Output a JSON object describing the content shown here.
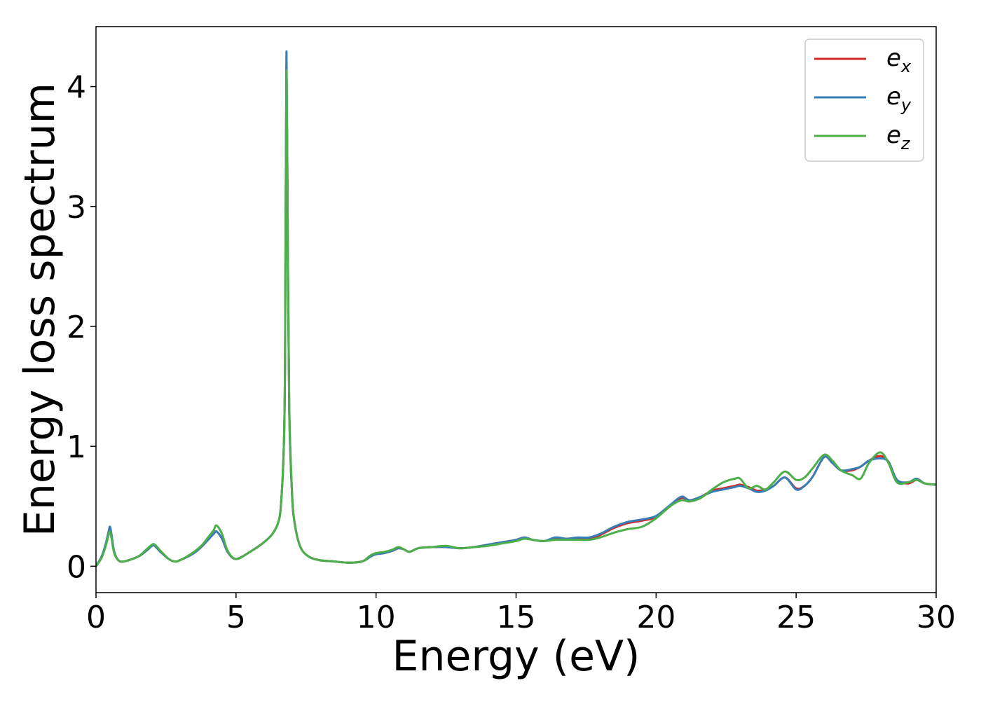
{
  "chart_data": {
    "type": "line",
    "title": "",
    "xlabel": "Energy (eV)",
    "ylabel": "Energy loss spectrum",
    "xlim": [
      0,
      30
    ],
    "ylim": [
      -0.22,
      4.5
    ],
    "xticks": [
      0,
      5,
      10,
      15,
      20,
      25,
      30
    ],
    "xtick_labels": [
      "0",
      "5",
      "10",
      "15",
      "20",
      "25",
      "30"
    ],
    "yticks": [
      0,
      1,
      2,
      3,
      4
    ],
    "ytick_labels": [
      "0",
      "1",
      "2",
      "3",
      "4"
    ],
    "grid": false,
    "legend_position": "top-right",
    "colors": {
      "ex": "#d62728",
      "ey": "#377eb8",
      "ez": "#4daf4a",
      "axes": "#000000"
    },
    "series": [
      {
        "name": "e_x",
        "legend_base": "e",
        "legend_sub": "x",
        "color": "#d62728",
        "x": [
          0,
          0.2,
          0.35,
          0.45,
          0.5,
          0.55,
          0.65,
          0.8,
          1.0,
          1.5,
          1.8,
          2.0,
          2.1,
          2.3,
          2.6,
          2.8,
          3.0,
          3.5,
          3.8,
          4.0,
          4.2,
          4.3,
          4.5,
          4.7,
          5.0,
          5.5,
          6.0,
          6.3,
          6.5,
          6.6,
          6.7,
          6.75,
          6.8,
          6.85,
          6.9,
          7.0,
          7.1,
          7.3,
          7.6,
          8.0,
          8.5,
          9.0,
          9.5,
          9.8,
          10.0,
          10.3,
          10.6,
          10.8,
          11.0,
          11.2,
          11.5,
          12.0,
          12.5,
          13.0,
          13.5,
          14.0,
          14.5,
          15.0,
          15.3,
          15.6,
          16.0,
          16.4,
          16.8,
          17.2,
          17.6,
          18.0,
          18.5,
          19.0,
          19.5,
          20.0,
          20.5,
          20.9,
          21.2,
          21.6,
          22.0,
          22.4,
          22.8,
          23.0,
          23.3,
          23.6,
          23.9,
          24.2,
          24.6,
          25.0,
          25.3,
          25.6,
          26.0,
          26.3,
          26.6,
          27.0,
          27.3,
          27.6,
          28.0,
          28.3,
          28.6,
          29.0,
          29.3,
          29.6,
          30.0
        ],
        "y": [
          0.0,
          0.08,
          0.18,
          0.28,
          0.31,
          0.26,
          0.12,
          0.05,
          0.04,
          0.08,
          0.13,
          0.17,
          0.17,
          0.12,
          0.06,
          0.04,
          0.05,
          0.11,
          0.17,
          0.22,
          0.27,
          0.29,
          0.23,
          0.12,
          0.06,
          0.12,
          0.2,
          0.27,
          0.36,
          0.5,
          0.95,
          1.7,
          4.18,
          2.6,
          1.3,
          0.6,
          0.35,
          0.16,
          0.08,
          0.05,
          0.04,
          0.03,
          0.04,
          0.08,
          0.1,
          0.11,
          0.13,
          0.15,
          0.14,
          0.12,
          0.15,
          0.16,
          0.16,
          0.15,
          0.16,
          0.18,
          0.2,
          0.22,
          0.24,
          0.22,
          0.21,
          0.23,
          0.23,
          0.23,
          0.23,
          0.26,
          0.32,
          0.36,
          0.38,
          0.41,
          0.5,
          0.57,
          0.55,
          0.58,
          0.63,
          0.65,
          0.67,
          0.68,
          0.66,
          0.63,
          0.64,
          0.67,
          0.74,
          0.65,
          0.67,
          0.75,
          0.91,
          0.86,
          0.8,
          0.8,
          0.83,
          0.88,
          0.92,
          0.87,
          0.72,
          0.69,
          0.72,
          0.69,
          0.68
        ]
      },
      {
        "name": "e_y",
        "legend_base": "e",
        "legend_sub": "y",
        "color": "#377eb8",
        "x": [
          0,
          0.2,
          0.35,
          0.45,
          0.5,
          0.55,
          0.65,
          0.8,
          1.0,
          1.5,
          1.8,
          2.0,
          2.1,
          2.3,
          2.6,
          2.8,
          3.0,
          3.5,
          3.8,
          4.0,
          4.2,
          4.3,
          4.5,
          4.7,
          5.0,
          5.5,
          6.0,
          6.3,
          6.5,
          6.6,
          6.7,
          6.75,
          6.8,
          6.85,
          6.9,
          7.0,
          7.1,
          7.3,
          7.6,
          8.0,
          8.5,
          9.0,
          9.5,
          9.8,
          10.0,
          10.3,
          10.6,
          10.8,
          11.0,
          11.2,
          11.5,
          12.0,
          12.5,
          13.0,
          13.5,
          14.0,
          14.5,
          15.0,
          15.3,
          15.6,
          16.0,
          16.4,
          16.8,
          17.2,
          17.6,
          18.0,
          18.5,
          19.0,
          19.5,
          20.0,
          20.5,
          20.9,
          21.2,
          21.6,
          22.0,
          22.4,
          22.8,
          23.0,
          23.3,
          23.6,
          23.9,
          24.2,
          24.6,
          25.0,
          25.3,
          25.6,
          26.0,
          26.3,
          26.6,
          27.0,
          27.3,
          27.6,
          28.0,
          28.3,
          28.6,
          29.0,
          29.3,
          29.6,
          30.0
        ],
        "y": [
          0.0,
          0.08,
          0.19,
          0.29,
          0.33,
          0.27,
          0.12,
          0.05,
          0.04,
          0.08,
          0.13,
          0.17,
          0.17,
          0.12,
          0.06,
          0.04,
          0.05,
          0.11,
          0.17,
          0.22,
          0.27,
          0.29,
          0.23,
          0.12,
          0.06,
          0.12,
          0.2,
          0.27,
          0.36,
          0.5,
          0.95,
          1.7,
          4.28,
          2.65,
          1.3,
          0.6,
          0.35,
          0.16,
          0.08,
          0.05,
          0.04,
          0.03,
          0.04,
          0.08,
          0.1,
          0.11,
          0.13,
          0.15,
          0.14,
          0.12,
          0.15,
          0.16,
          0.16,
          0.15,
          0.16,
          0.18,
          0.2,
          0.22,
          0.24,
          0.22,
          0.21,
          0.24,
          0.23,
          0.24,
          0.24,
          0.27,
          0.33,
          0.37,
          0.39,
          0.42,
          0.51,
          0.58,
          0.55,
          0.58,
          0.62,
          0.64,
          0.66,
          0.67,
          0.65,
          0.62,
          0.63,
          0.67,
          0.74,
          0.64,
          0.67,
          0.75,
          0.91,
          0.86,
          0.8,
          0.81,
          0.83,
          0.88,
          0.9,
          0.87,
          0.72,
          0.7,
          0.73,
          0.69,
          0.68
        ]
      },
      {
        "name": "e_z",
        "legend_base": "e",
        "legend_sub": "z",
        "color": "#4daf4a",
        "x": [
          0,
          0.2,
          0.35,
          0.45,
          0.5,
          0.55,
          0.65,
          0.8,
          1.0,
          1.5,
          1.8,
          2.0,
          2.1,
          2.3,
          2.6,
          2.8,
          3.0,
          3.5,
          3.8,
          4.0,
          4.2,
          4.3,
          4.5,
          4.7,
          5.0,
          5.5,
          6.0,
          6.3,
          6.5,
          6.6,
          6.7,
          6.75,
          6.8,
          6.85,
          6.9,
          7.0,
          7.1,
          7.3,
          7.6,
          8.0,
          8.5,
          9.0,
          9.5,
          9.8,
          10.0,
          10.3,
          10.6,
          10.8,
          11.0,
          11.2,
          11.5,
          12.0,
          12.5,
          13.0,
          13.5,
          14.0,
          14.5,
          15.0,
          15.3,
          15.6,
          16.0,
          16.4,
          16.8,
          17.2,
          17.6,
          18.0,
          18.5,
          19.0,
          19.5,
          20.0,
          20.5,
          20.9,
          21.2,
          21.6,
          22.0,
          22.4,
          22.8,
          23.0,
          23.3,
          23.6,
          23.9,
          24.2,
          24.6,
          25.0,
          25.3,
          25.6,
          26.0,
          26.3,
          26.6,
          27.0,
          27.3,
          27.6,
          28.0,
          28.3,
          28.6,
          29.0,
          29.3,
          29.6,
          30.0
        ],
        "y": [
          0.0,
          0.07,
          0.17,
          0.26,
          0.29,
          0.24,
          0.11,
          0.05,
          0.04,
          0.08,
          0.14,
          0.18,
          0.18,
          0.13,
          0.06,
          0.04,
          0.05,
          0.12,
          0.18,
          0.24,
          0.3,
          0.34,
          0.27,
          0.13,
          0.06,
          0.12,
          0.2,
          0.27,
          0.36,
          0.5,
          0.95,
          1.7,
          4.12,
          2.7,
          1.35,
          0.62,
          0.35,
          0.16,
          0.08,
          0.05,
          0.04,
          0.03,
          0.04,
          0.09,
          0.11,
          0.12,
          0.14,
          0.16,
          0.14,
          0.12,
          0.15,
          0.16,
          0.17,
          0.15,
          0.16,
          0.17,
          0.19,
          0.21,
          0.23,
          0.22,
          0.21,
          0.22,
          0.22,
          0.22,
          0.22,
          0.24,
          0.28,
          0.31,
          0.33,
          0.4,
          0.5,
          0.55,
          0.54,
          0.57,
          0.64,
          0.7,
          0.73,
          0.73,
          0.65,
          0.67,
          0.64,
          0.7,
          0.79,
          0.72,
          0.74,
          0.82,
          0.93,
          0.88,
          0.8,
          0.76,
          0.73,
          0.86,
          0.95,
          0.86,
          0.7,
          0.7,
          0.72,
          0.69,
          0.68
        ]
      }
    ]
  }
}
